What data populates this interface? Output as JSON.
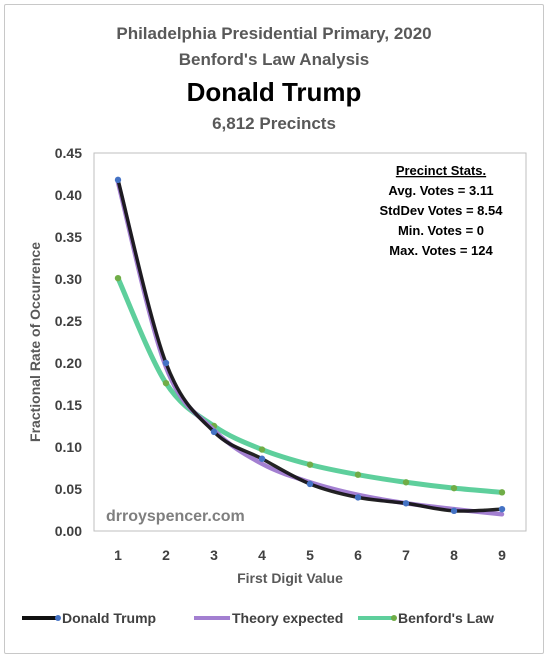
{
  "header": {
    "title_line1": "Philadelphia Presidential Primary, 2020",
    "title_line2": "Benford's Law Analysis",
    "candidate": "Donald Trump",
    "precincts": "6,812 Precincts"
  },
  "stats_box": {
    "heading": "Precinct Stats.",
    "avg": "Avg. Votes = 3.11",
    "stddev": "StdDev Votes = 8.54",
    "min": "Min. Votes = 0",
    "max": "Max. Votes = 124"
  },
  "watermark": "drroyspencer.com",
  "colors": {
    "trump": "#111111",
    "trump_marker": "#4472c4",
    "theory": "#a37fd1",
    "benford": "#5ecf9c",
    "benford_marker": "#70ad47"
  },
  "chart_data": {
    "type": "line",
    "x": [
      1,
      2,
      3,
      4,
      5,
      6,
      7,
      8,
      9
    ],
    "xlabel": "First Digit Value",
    "ylabel": "Fractional Rate of Occurrence",
    "xlim": [
      0.5,
      9.5
    ],
    "ylim": [
      0,
      0.45
    ],
    "yticks": [
      "0.00",
      "0.05",
      "0.10",
      "0.15",
      "0.20",
      "0.25",
      "0.30",
      "0.35",
      "0.40",
      "0.45"
    ],
    "xticks": [
      "1",
      "2",
      "3",
      "4",
      "5",
      "6",
      "7",
      "8",
      "9"
    ],
    "grid": false,
    "legend_position": "bottom",
    "series": [
      {
        "name": "Donald Trump",
        "values": [
          0.418,
          0.2,
          0.118,
          0.086,
          0.056,
          0.04,
          0.033,
          0.024,
          0.026
        ]
      },
      {
        "name": "Theory expected",
        "values": [
          0.415,
          0.195,
          0.12,
          0.08,
          0.058,
          0.043,
          0.033,
          0.026,
          0.02
        ]
      },
      {
        "name": "Benford's Law",
        "values": [
          0.301,
          0.176,
          0.125,
          0.097,
          0.079,
          0.067,
          0.058,
          0.051,
          0.046
        ]
      }
    ]
  }
}
